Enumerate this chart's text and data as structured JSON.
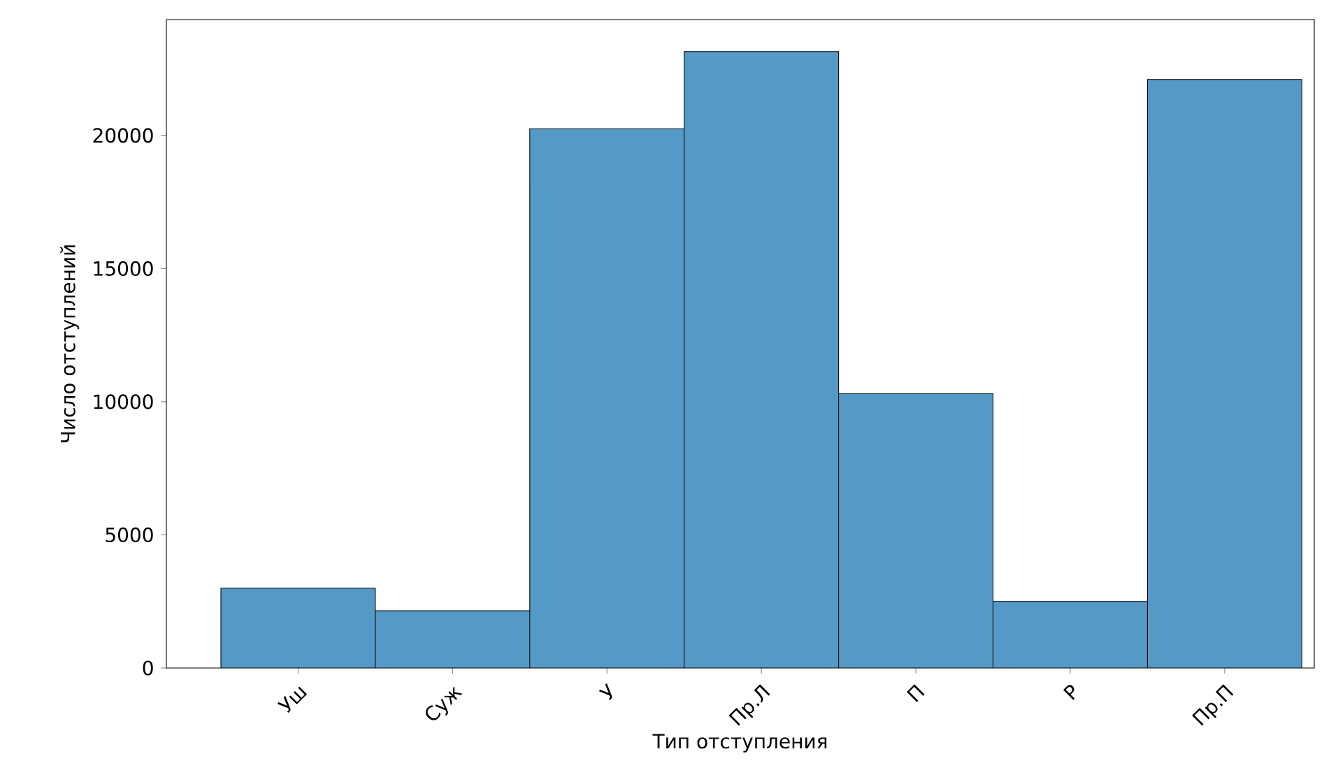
{
  "chart_data": {
    "type": "bar",
    "xlabel": "Тип отступления",
    "ylabel": "Число отступлений",
    "categories": [
      "Уш",
      "Суж",
      "У",
      "Пр.Л",
      "П",
      "Р",
      "Пр.П"
    ],
    "values": [
      3000,
      2150,
      20250,
      23150,
      10300,
      2500,
      22100
    ],
    "color": "#559ac7",
    "ylim": [
      0,
      24350
    ],
    "yticks": [
      0,
      5000,
      10000,
      15000,
      20000
    ],
    "grid": false
  }
}
